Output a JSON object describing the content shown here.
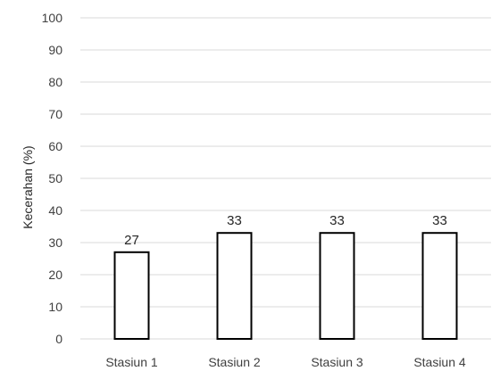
{
  "chart_data": {
    "type": "bar",
    "categories": [
      "Stasiun 1",
      "Stasiun 2",
      "Stasiun 3",
      "Stasiun 4"
    ],
    "values": [
      27,
      33,
      33,
      33
    ],
    "data_labels": [
      "27",
      "33",
      "33",
      "33"
    ],
    "xlabel": "",
    "ylabel": "Kecerahan (%)",
    "ylim": [
      0,
      100
    ],
    "yticks": [
      0,
      10,
      20,
      30,
      40,
      50,
      60,
      70,
      80,
      90,
      100
    ],
    "grid": true,
    "legend": "none",
    "colors": {
      "bar_fill": "#ffffff",
      "bar_stroke": "#000000",
      "grid": "#d9d9d9"
    }
  }
}
